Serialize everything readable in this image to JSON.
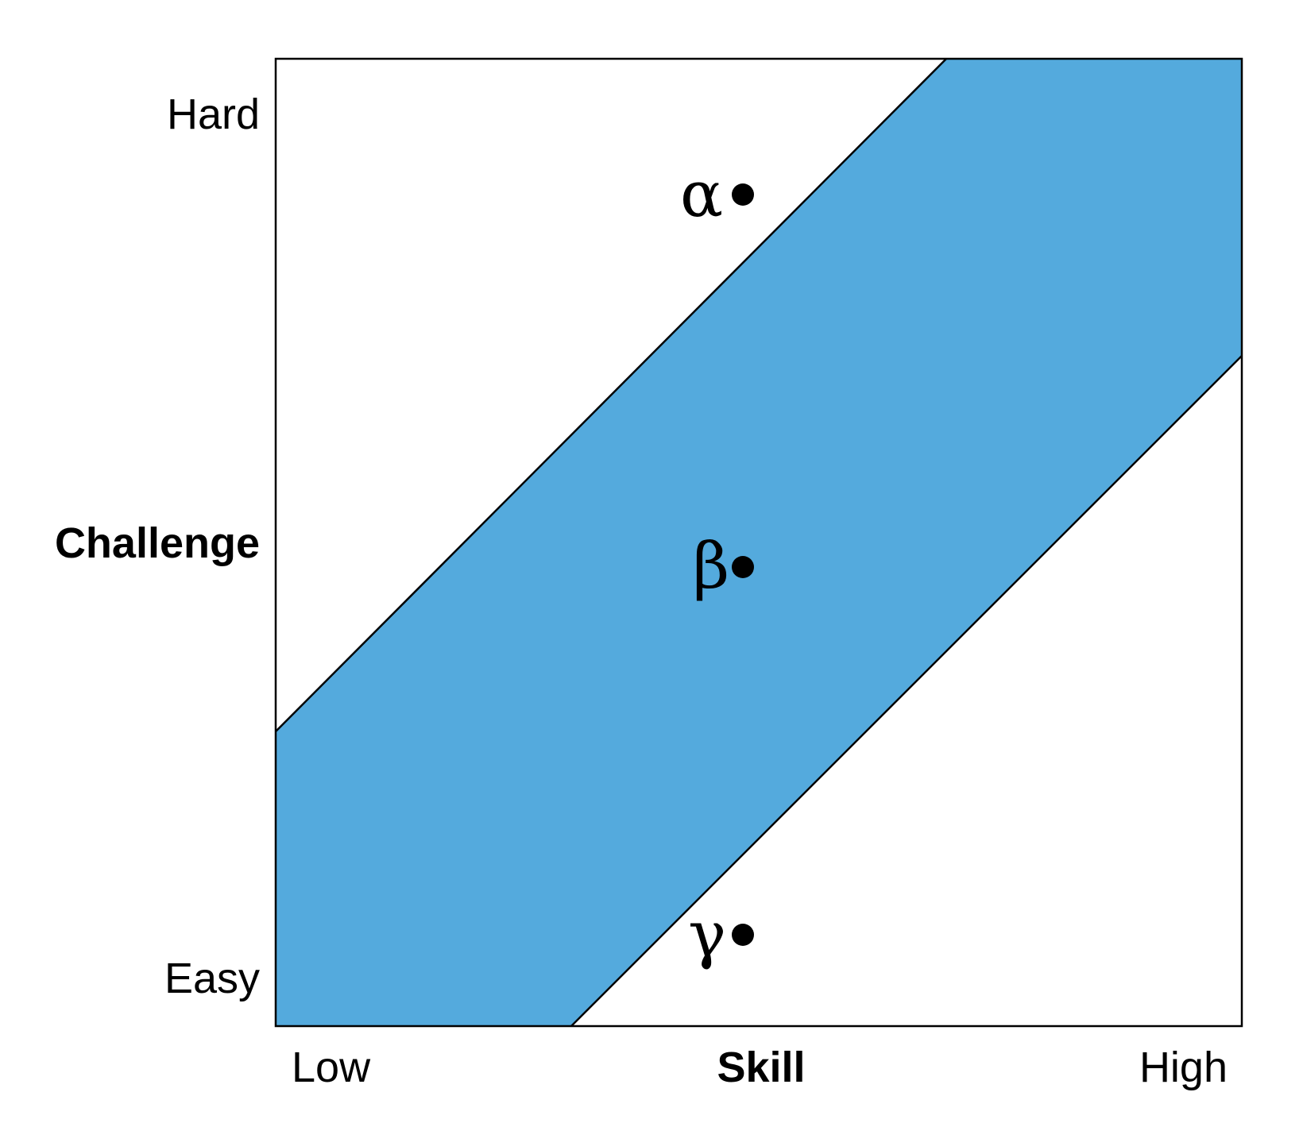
{
  "diagram": {
    "y_axis": {
      "title": "Challenge",
      "high_label": "Hard",
      "low_label": "Easy"
    },
    "x_axis": {
      "title": "Skill",
      "low_label": "Low",
      "high_label": "High"
    },
    "band": {
      "fill_color": "#54AADD",
      "outline_color": "#000000"
    },
    "points": [
      {
        "id": "alpha",
        "symbol": "α"
      },
      {
        "id": "beta",
        "symbol": "β"
      },
      {
        "id": "gamma",
        "symbol": "γ"
      }
    ]
  }
}
